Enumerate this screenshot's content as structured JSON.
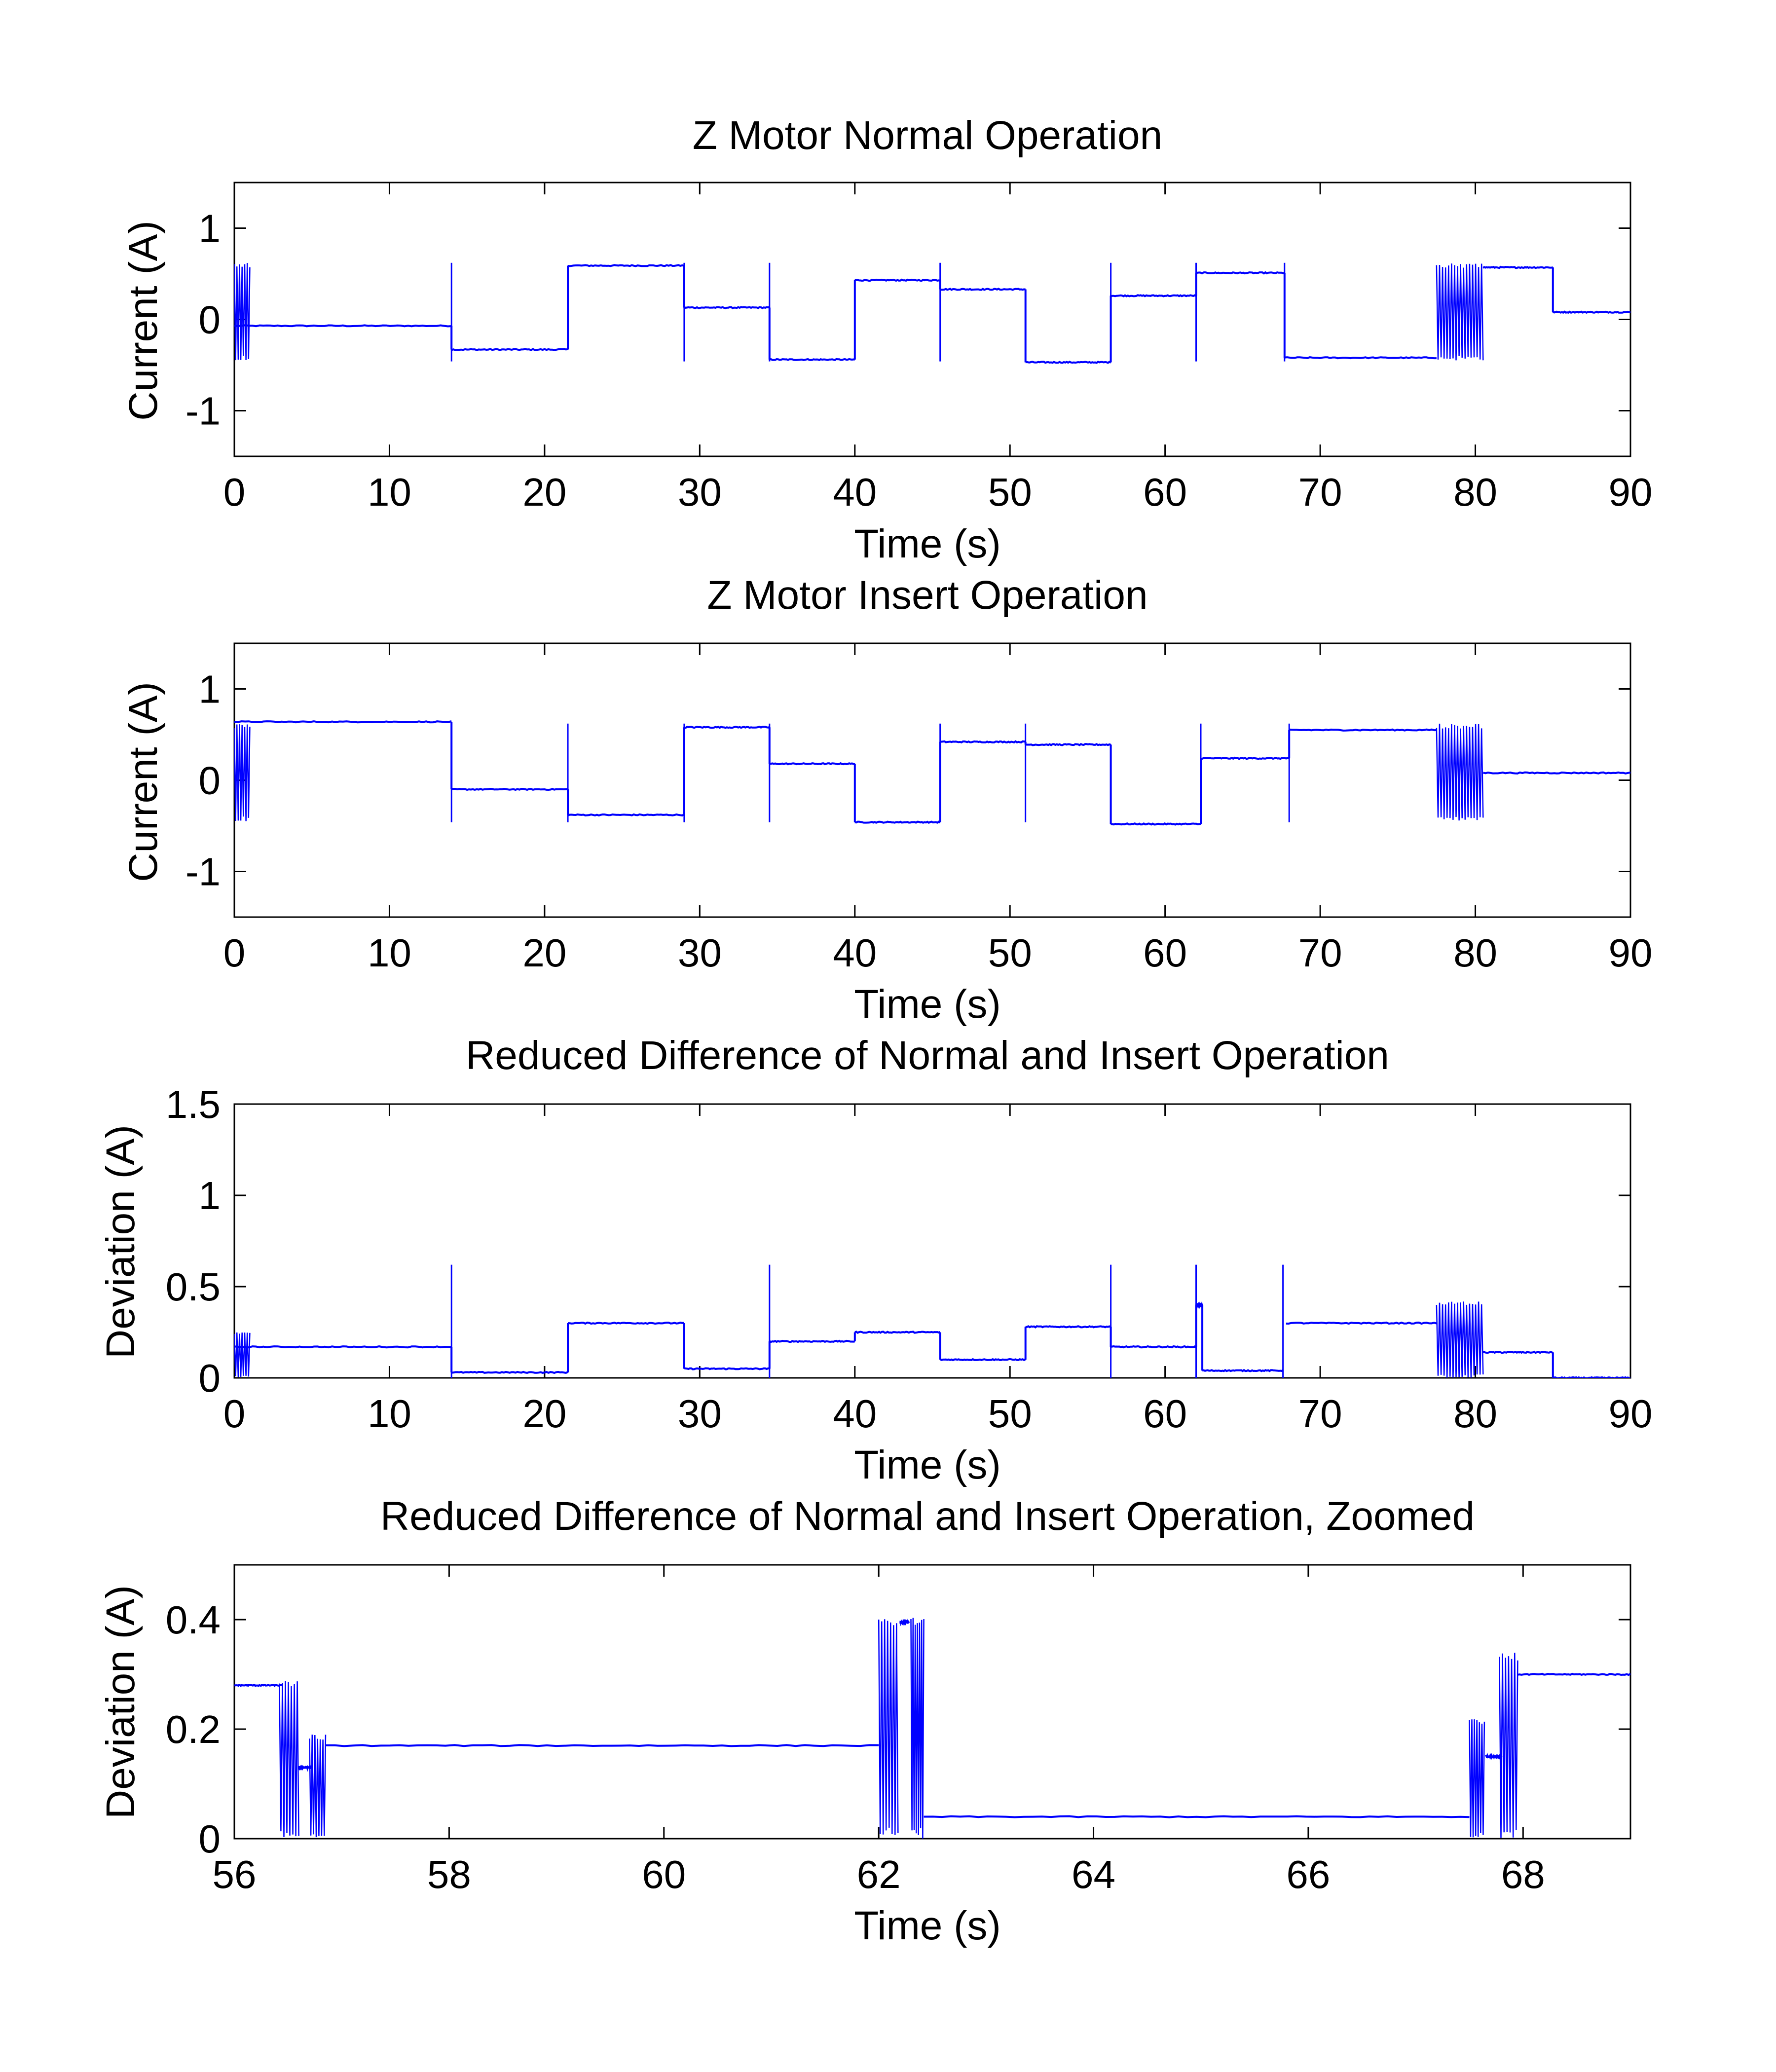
{
  "figure": {
    "background": "#ffffff",
    "line_color": "#0000ff",
    "axis_color": "#000000"
  },
  "chart_data": [
    {
      "type": "line",
      "title": "Z Motor Normal Operation",
      "xlabel": "Time (s)",
      "ylabel": "Current (A)",
      "xlim": [
        0,
        90
      ],
      "ylim": [
        -1.5,
        1.5
      ],
      "xticks": [
        0,
        10,
        20,
        30,
        40,
        50,
        60,
        70,
        80,
        90
      ],
      "yticks": [
        -1,
        0,
        1
      ],
      "grid": false,
      "series": [
        {
          "color": "#0000ff",
          "segments": [
            [
              0,
              14,
              -0.07
            ],
            [
              14,
              21.5,
              -0.33
            ],
            [
              21.5,
              29,
              0.59
            ],
            [
              29,
              34.5,
              0.13
            ],
            [
              34.5,
              40,
              -0.44
            ],
            [
              40,
              45.5,
              0.43
            ],
            [
              45.5,
              51,
              0.33
            ],
            [
              51,
              56.5,
              -0.47
            ],
            [
              56.5,
              62,
              0.26
            ],
            [
              62,
              67.7,
              0.51
            ],
            [
              67.7,
              77.5,
              -0.42
            ],
            [
              80.5,
              85,
              0.57
            ],
            [
              85,
              90,
              0.08
            ]
          ],
          "spikes": [
            14,
            29,
            34.5,
            45.5,
            56.5,
            62,
            67.7
          ],
          "oscillation_bands": [
            [
              0,
              1,
              -0.45,
              0.62
            ],
            [
              77.5,
              80.5,
              -0.45,
              0.62
            ]
          ]
        }
      ]
    },
    {
      "type": "line",
      "title": "Z Motor Insert Operation",
      "xlabel": "Time (s)",
      "ylabel": "Current (A)",
      "xlim": [
        0,
        90
      ],
      "ylim": [
        -1.5,
        1.5
      ],
      "xticks": [
        0,
        10,
        20,
        30,
        40,
        50,
        60,
        70,
        80,
        90
      ],
      "yticks": [
        -1,
        0,
        1
      ],
      "grid": false,
      "series": [
        {
          "color": "#0000ff",
          "segments": [
            [
              0,
              14,
              0.64
            ],
            [
              14,
              21.5,
              -0.1
            ],
            [
              21.5,
              29,
              -0.38
            ],
            [
              29,
              34.5,
              0.58
            ],
            [
              34.5,
              40,
              0.18
            ],
            [
              40,
              45.5,
              -0.46
            ],
            [
              45.5,
              51,
              0.42
            ],
            [
              51,
              56.5,
              0.39
            ],
            [
              56.5,
              62.3,
              -0.48
            ],
            [
              62.3,
              68,
              0.24
            ],
            [
              68,
              77.5,
              0.55
            ],
            [
              80.5,
              90,
              0.08
            ]
          ],
          "spikes": [
            14,
            21.5,
            29,
            34.5,
            45.5,
            51,
            62.3,
            68
          ],
          "oscillation_bands": [
            [
              0,
              1,
              -0.45,
              0.62
            ],
            [
              77.5,
              80.5,
              -0.45,
              0.62
            ]
          ]
        }
      ]
    },
    {
      "type": "line",
      "title": "Reduced Difference of Normal and Insert Operation",
      "xlabel": "Time (s)",
      "ylabel": "Deviation (A)",
      "xlim": [
        0,
        90
      ],
      "ylim": [
        0,
        1.5
      ],
      "xticks": [
        0,
        10,
        20,
        30,
        40,
        50,
        60,
        70,
        80,
        90
      ],
      "yticks": [
        0,
        0.5,
        1,
        1.5
      ],
      "grid": false,
      "series": [
        {
          "color": "#0000ff",
          "segments": [
            [
              0,
              14,
              0.17
            ],
            [
              14,
              21.5,
              0.03
            ],
            [
              21.5,
              29,
              0.3
            ],
            [
              29,
              34.5,
              0.05
            ],
            [
              34.5,
              40,
              0.2
            ],
            [
              40,
              45.5,
              0.25
            ],
            [
              45.5,
              51,
              0.1
            ],
            [
              51,
              56.5,
              0.28
            ],
            [
              56.5,
              62,
              0.17
            ],
            [
              62,
              62.4,
              0.4
            ],
            [
              62.4,
              67.6,
              0.04
            ],
            [
              67.8,
              77.5,
              0.3
            ],
            [
              80.5,
              85,
              0.14
            ],
            [
              85,
              90,
              0.0
            ]
          ],
          "spikes": [
            14,
            34.5,
            56.5,
            62,
            67.6
          ],
          "oscillation_bands": [
            [
              0,
              1,
              0.0,
              0.25
            ],
            [
              77.5,
              80.5,
              0.0,
              0.42
            ]
          ]
        }
      ]
    },
    {
      "type": "line",
      "title": "Reduced Difference of Normal and Insert Operation, Zoomed",
      "xlabel": "Time (s)",
      "ylabel": "Deviation (A)",
      "xlim": [
        56,
        69
      ],
      "ylim": [
        0,
        0.5
      ],
      "xticks": [
        56,
        58,
        60,
        62,
        64,
        66,
        68
      ],
      "yticks": [
        0,
        0.2,
        0.4
      ],
      "grid": false,
      "series": [
        {
          "color": "#0000ff",
          "segments": [
            [
              56,
              56.45,
              0.28
            ],
            [
              56.6,
              56.72,
              0.13
            ],
            [
              56.85,
              62,
              0.17
            ],
            [
              62.2,
              62.28,
              0.395
            ],
            [
              62.42,
              67.5,
              0.04
            ],
            [
              67.65,
              67.8,
              0.15
            ],
            [
              67.95,
              69,
              0.3
            ]
          ],
          "spikes": [],
          "oscillation_bands": [
            [
              56.42,
              56.6,
              0.0,
              0.29
            ],
            [
              56.7,
              56.85,
              0.0,
              0.19
            ],
            [
              62.0,
              62.18,
              0.0,
              0.41
            ],
            [
              62.3,
              62.42,
              0.0,
              0.41
            ],
            [
              67.5,
              67.64,
              0.0,
              0.22
            ],
            [
              67.78,
              67.95,
              0.0,
              0.34
            ]
          ]
        }
      ]
    }
  ]
}
